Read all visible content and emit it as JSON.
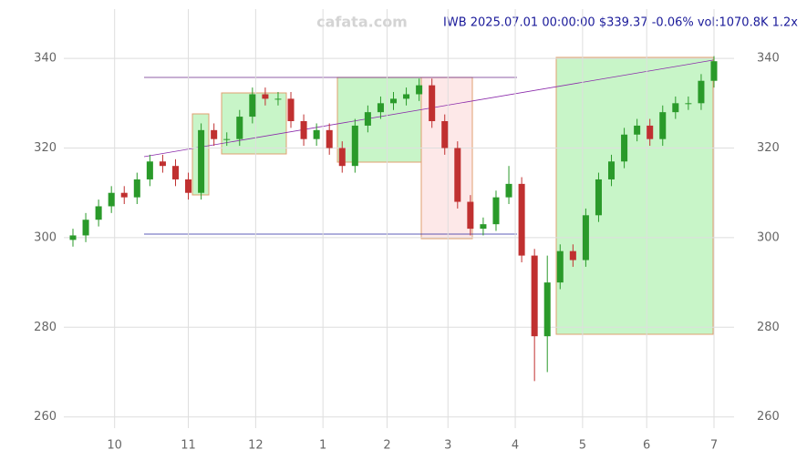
{
  "chart_data": {
    "type": "candlestick",
    "title": "IWB 2025.07.01 00:00:00 $339.37 -0.06% vol:1070.8K 1.2x",
    "watermark": "cafata.com",
    "x": [
      0,
      4,
      8,
      12,
      16,
      20,
      24,
      28,
      32,
      36,
      40,
      44,
      48,
      52,
      56,
      60,
      64,
      68,
      72,
      76,
      80,
      84,
      88,
      92,
      96,
      100,
      104,
      108,
      112,
      116,
      120,
      124,
      128,
      132,
      136,
      140,
      144,
      148,
      152,
      156,
      160,
      164,
      168,
      172,
      176,
      180,
      184,
      188,
      192,
      196,
      200
    ],
    "open": [
      299.5,
      300.5,
      304,
      307,
      310,
      309,
      313,
      317,
      316,
      313,
      310,
      324,
      322,
      322,
      327,
      332,
      331,
      331,
      326,
      322,
      324,
      320,
      316,
      325,
      328,
      330,
      331,
      332,
      334,
      326,
      320,
      308,
      302,
      303,
      309,
      312,
      296,
      278,
      290,
      297,
      295,
      305,
      313,
      317,
      323,
      325,
      322,
      328,
      330,
      330,
      335
    ],
    "high": [
      302,
      305.5,
      308.5,
      311.5,
      311.5,
      314.5,
      318.5,
      318.5,
      317.5,
      314.5,
      325.5,
      325.5,
      323.5,
      328.5,
      333.5,
      333.5,
      332.5,
      332.5,
      327.5,
      325.5,
      325.5,
      321.5,
      326.5,
      329.5,
      331.5,
      332.5,
      333.5,
      335.5,
      335.5,
      327.5,
      321.5,
      309.5,
      304.5,
      310.5,
      316,
      313.5,
      297.5,
      296,
      298.5,
      298.5,
      306.5,
      314.5,
      318.5,
      324.5,
      326.5,
      326.5,
      329.5,
      331.5,
      331.5,
      336.5,
      340.5
    ],
    "low": [
      298,
      299,
      302.5,
      305.5,
      307.5,
      307.5,
      311.5,
      314.5,
      311.5,
      308.5,
      308.5,
      320.5,
      320.5,
      320.5,
      325.5,
      329.5,
      329.5,
      324.5,
      320.5,
      320.5,
      318.5,
      314.5,
      314.5,
      323.5,
      326.5,
      328.5,
      329.5,
      330.5,
      324.5,
      318.5,
      306.5,
      300.5,
      300.5,
      301.5,
      307.5,
      294.5,
      268,
      270,
      288.5,
      293.5,
      293.5,
      303.5,
      311.5,
      315.5,
      321.5,
      320.5,
      320.5,
      326.5,
      328.5,
      328.5,
      333.5
    ],
    "close": [
      300.5,
      304,
      307,
      310,
      309,
      313,
      317,
      316,
      313,
      310,
      324,
      322,
      322,
      327,
      332,
      331,
      331,
      326,
      322,
      324,
      320,
      316,
      325,
      328,
      330,
      331,
      332,
      334,
      326,
      320,
      308,
      302,
      303,
      309,
      312,
      296,
      278,
      290,
      297,
      295,
      305,
      313,
      317,
      323,
      325,
      322,
      328,
      330,
      330,
      335,
      339.37
    ],
    "up_color": "#2a9a2a",
    "down_color": "#c03030",
    "xlim": [
      0,
      200
    ],
    "xticks": [
      {
        "value": 13,
        "label": "10"
      },
      {
        "value": 36,
        "label": "11"
      },
      {
        "value": 57,
        "label": "12"
      },
      {
        "value": 78,
        "label": "1"
      },
      {
        "value": 98,
        "label": "2"
      },
      {
        "value": 117,
        "label": "3"
      },
      {
        "value": 138,
        "label": "4"
      },
      {
        "value": 159,
        "label": "5"
      },
      {
        "value": 179,
        "label": "6"
      },
      {
        "value": 200,
        "label": "7"
      }
    ],
    "ylim": [
      257.5,
      351
    ],
    "yticks": [
      260,
      280,
      300,
      320,
      340
    ],
    "grid": true
  }
}
